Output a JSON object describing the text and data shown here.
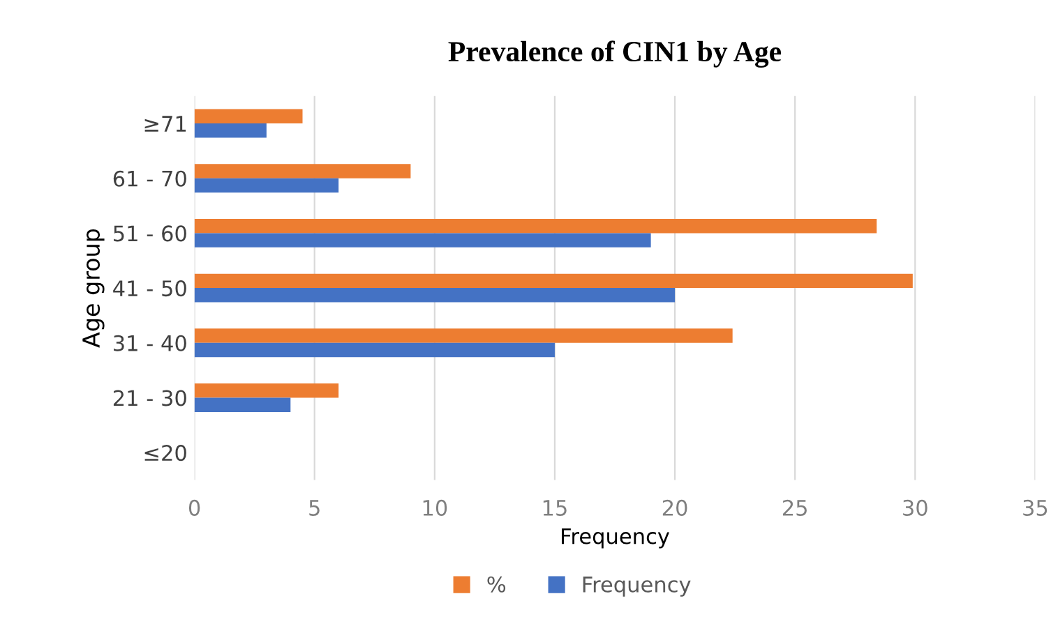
{
  "chart_data": {
    "type": "bar",
    "orientation": "horizontal",
    "title": "Prevalence of CIN1 by Age",
    "xlabel": "Frequency",
    "ylabel": "Age group",
    "categories": [
      "≥71",
      "61 - 70",
      "51 - 60",
      "41 - 50",
      "31 - 40",
      "21 - 30",
      "≤20"
    ],
    "series": [
      {
        "name": "%",
        "color": "#ed7d31",
        "values": [
          4.5,
          9.0,
          28.4,
          29.9,
          22.4,
          6.0,
          0
        ]
      },
      {
        "name": "Frequency",
        "color": "#4472c4",
        "values": [
          3,
          6,
          19,
          20,
          15,
          4,
          0
        ]
      }
    ],
    "xlim": [
      0,
      35
    ],
    "xticks": [
      0,
      5,
      10,
      15,
      20,
      25,
      30,
      35
    ],
    "grid": "x",
    "legend": "bottom"
  }
}
